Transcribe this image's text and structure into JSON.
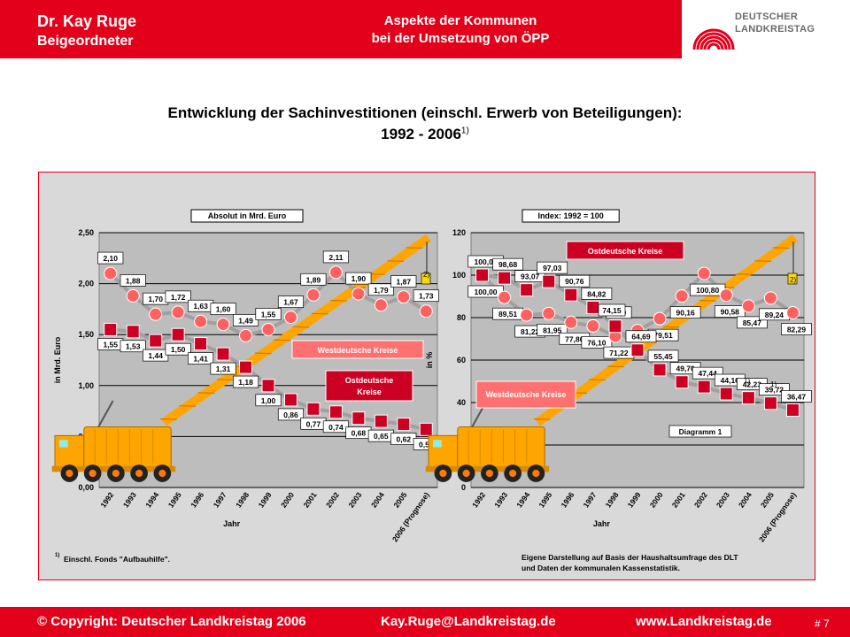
{
  "header": {
    "name": "Dr. Kay Ruge",
    "role": "Beigeordneter",
    "subtitle_line1": "Aspekte der Kommunen",
    "subtitle_line2": "bei der Umsetzung von ÖPP",
    "logo_line1": "DEUTSCHER",
    "logo_line2": "LANDKREISTAG"
  },
  "title": {
    "line1": "Entwicklung der Sachinvestitionen (einschl. Erwerb von Beteiligungen):",
    "line2": "1992 - 2006",
    "line2_sup": "1)"
  },
  "footer": {
    "copyright": "© Copyright: Deutscher Landkreistag 2006",
    "email": "Kay.Ruge@Landkreistag.de",
    "website": "www.Landkreistag.de",
    "page": "# 7"
  },
  "notes": {
    "footnote": "Einschl. Fonds \"Aufbauhilfe\".",
    "footnote_mark": "1)",
    "source_line1": "Eigene Darstellung auf Basis der Haushaltsumfrage des DLT",
    "source_line2": "und Daten der kommunalen Kassenstatistik."
  },
  "colors": {
    "brand_red": "#e2001a",
    "west_marker": "#ff6060",
    "east_marker": "#cc0022",
    "plot_bg": "#bdbdbd",
    "crane": "#ffa500"
  },
  "chart_data": [
    {
      "type": "line",
      "box_title": "Absolut in Mrd. Euro",
      "ylabel": "in Mrd. Euro",
      "xlabel": "Jahr",
      "ylim": [
        0,
        2.5
      ],
      "yticks": [
        "0,00",
        "0,50",
        "1,00",
        "1,50",
        "2,00",
        "2,50"
      ],
      "categories": [
        "1992",
        "1993",
        "1994",
        "1995",
        "1996",
        "1997",
        "1998",
        "1999",
        "2000",
        "2001",
        "2002",
        "2003",
        "2004",
        "2005",
        "2006 (Prognose)"
      ],
      "series": [
        {
          "name": "Westdeutsche Kreise",
          "marker": "circle",
          "values": [
            2.1,
            1.88,
            1.7,
            1.72,
            1.63,
            1.6,
            1.49,
            1.55,
            1.67,
            1.89,
            2.11,
            1.9,
            1.79,
            1.87,
            1.73
          ],
          "labels": [
            "2,10",
            "1,88",
            "1,70",
            "1,72",
            "1,63",
            "1,60",
            "1,49",
            "1,55",
            "1,67",
            "1,89",
            "2,11",
            "1,90",
            "1,79",
            "1,87",
            "1,73"
          ]
        },
        {
          "name": "Ostdeutsche Kreise",
          "marker": "square",
          "values": [
            1.55,
            1.53,
            1.44,
            1.5,
            1.41,
            1.31,
            1.18,
            1.0,
            0.86,
            0.77,
            0.74,
            0.68,
            0.65,
            0.62,
            0.57
          ],
          "labels": [
            "1,55",
            "1,53",
            "1,44",
            "1,50",
            "1,41",
            "1,31",
            "1,18",
            "1,00",
            "0,86",
            "0,77",
            "0,74",
            "0,68",
            "0,65",
            "0,62",
            "0,57"
          ]
        }
      ],
      "callouts": [
        "Westdeutsche Kreise",
        "Ostdeutsche Kreise"
      ],
      "annotations": [
        "2)"
      ],
      "grid": true
    },
    {
      "type": "line",
      "box_title": "Index: 1992 = 100",
      "ylabel": "in %",
      "xlabel": "Jahr",
      "ylim": [
        0,
        120
      ],
      "yticks": [
        "0",
        "20",
        "40",
        "60",
        "80",
        "100",
        "120"
      ],
      "categories": [
        "1992",
        "1993",
        "1994",
        "1995",
        "1996",
        "1997",
        "1998",
        "1999",
        "2000",
        "2001",
        "2002",
        "2003",
        "2004",
        "2005",
        "2006 (Prognose)"
      ],
      "series": [
        {
          "name": "Westdeutsche Kreise",
          "marker": "circle",
          "values": [
            100.0,
            89.51,
            81.22,
            81.95,
            77.8,
            76.1,
            71.22,
            73.9,
            79.51,
            90.16,
            100.8,
            90.58,
            85.47,
            89.24,
            82.29
          ],
          "labels": [
            "100,00",
            "89,51",
            "81,22",
            "81,95",
            "77,80",
            "76,10",
            "71,22",
            "",
            "79,51",
            "90,16",
            "100,80",
            "90,58",
            "85,47",
            "89,24",
            "82,29"
          ]
        },
        {
          "name": "Ostdeutsche Kreise",
          "marker": "square",
          "values": [
            100.0,
            98.68,
            93.07,
            97.03,
            90.76,
            84.82,
            75.94,
            64.69,
            55.45,
            49.7,
            47.44,
            44.16,
            42.23,
            39.72,
            36.47
          ],
          "labels": [
            "100,00",
            "98,68",
            "93,07",
            "97,03",
            "90,76",
            "84,82",
            "75,9",
            "64,69",
            "55,45",
            "49,70",
            "47,44",
            "44,16",
            "42,23",
            "39,72",
            "36,47"
          ]
        }
      ],
      "extra_labels": [
        "74,15"
      ],
      "callouts": [
        "Ostdeutsche Kreise",
        "Westdeutsche Kreise"
      ],
      "legend_box": "Diagramm 1",
      "annotations": [
        "2)",
        "1)",
        "1)"
      ],
      "grid": true
    }
  ]
}
